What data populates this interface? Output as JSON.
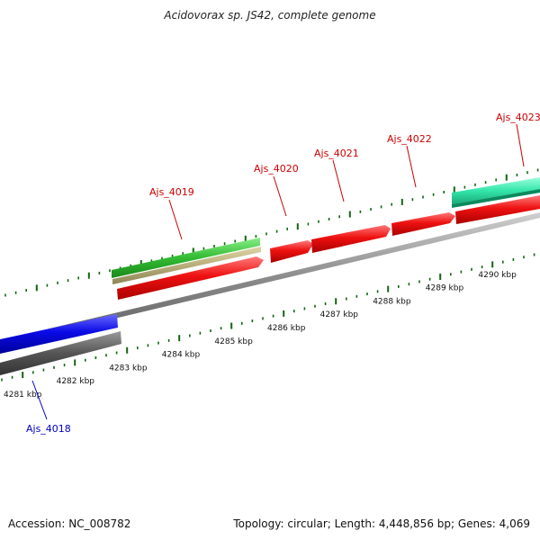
{
  "title": "Acidovorax sp. JS42, complete genome",
  "footer": {
    "accession": "Accession: NC_008782",
    "stats": "Topology: circular; Length: 4,448,856 bp; Genes: 4,069"
  },
  "ruler": {
    "labels": [
      "4281 kbp",
      "4282 kbp",
      "4283 kbp",
      "4284 kbp",
      "4285 kbp",
      "4286 kbp",
      "4287 kbp",
      "4288 kbp",
      "4289 kbp",
      "4290 kbp"
    ],
    "color": "#116611"
  },
  "genes": [
    {
      "label": "Ajs_4018",
      "strand": "minus",
      "color": "#0000dd"
    },
    {
      "label": "Ajs_4019",
      "strand": "plus",
      "color": "#dd0000"
    },
    {
      "label": "Ajs_4020",
      "strand": "plus",
      "color": "#dd0000"
    },
    {
      "label": "Ajs_4021",
      "strand": "plus",
      "color": "#dd0000"
    },
    {
      "label": "Ajs_4022",
      "strand": "plus",
      "color": "#dd0000"
    },
    {
      "label": "Ajs_4023",
      "strand": "plus",
      "color": "#dd0000"
    }
  ],
  "colors": {
    "plus_gene": "#ee1111",
    "minus_gene": "#0a0ae6",
    "backbone": "#888888",
    "minus_backbone": "#555555",
    "feature_green": "#33bb33",
    "feature_tan": "#b8ae7a",
    "feature_teal": "#33e6aa"
  }
}
